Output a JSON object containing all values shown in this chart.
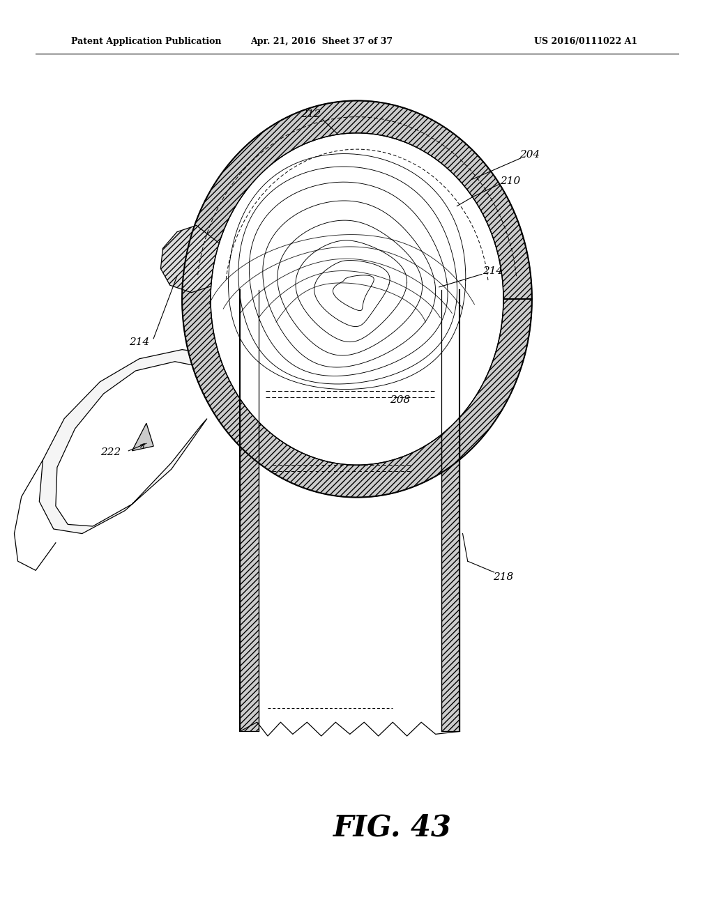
{
  "title_left": "Patent Application Publication",
  "title_mid": "Apr. 21, 2016  Sheet 37 of 37",
  "title_right": "US 2016/0111022 A1",
  "fig_label": "FIG. 43",
  "background": "#ffffff",
  "line_color": "#000000"
}
